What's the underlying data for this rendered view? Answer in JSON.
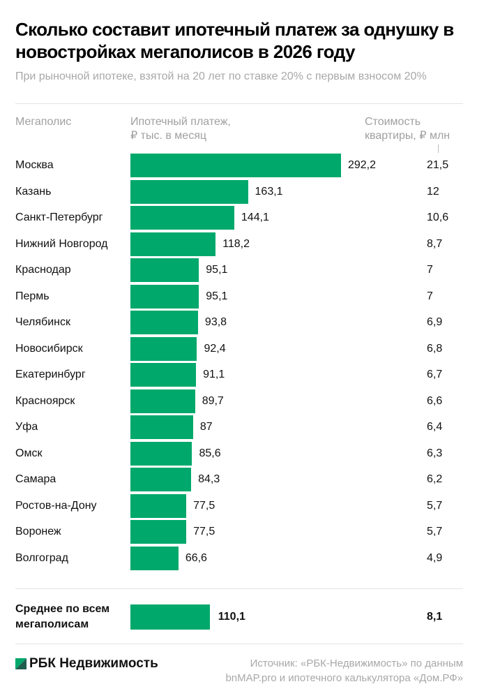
{
  "title": "Сколько составит ипотечный платеж за однушку в новостройках мегаполисов в 2026 году",
  "subtitle": "При рыночной ипотеке, взятой на 20 лет по ставке 20% с первым взносом 20%",
  "headers": {
    "city": "Мегаполис",
    "payment_line1": "Ипотечный платеж,",
    "payment_line2": "₽ тыс. в месяц",
    "price_line1": "Стоимость",
    "price_line2": "квартиры, ₽ млн"
  },
  "chart_data": {
    "type": "bar",
    "orientation": "horizontal",
    "categories": [
      "Москва",
      "Казань",
      "Санкт-Петербург",
      "Нижний Новгород",
      "Краснодар",
      "Пермь",
      "Челябинск",
      "Новосибирск",
      "Екатеринбург",
      "Красноярск",
      "Уфа",
      "Омск",
      "Самара",
      "Ростов-на-Дону",
      "Воронеж",
      "Волгоград"
    ],
    "values": [
      292.2,
      163.1,
      144.1,
      118.2,
      95.1,
      95.1,
      93.8,
      92.4,
      91.1,
      89.7,
      87,
      85.6,
      84.3,
      77.5,
      77.5,
      66.6
    ],
    "value_labels": [
      "292,2",
      "163,1",
      "144,1",
      "118,2",
      "95,1",
      "95,1",
      "93,8",
      "92,4",
      "91,1",
      "89,7",
      "87",
      "85,6",
      "84,3",
      "77,5",
      "77,5",
      "66,6"
    ],
    "price_labels": [
      "21,5",
      "12",
      "10,6",
      "8,7",
      "7",
      "7",
      "6,9",
      "6,8",
      "6,7",
      "6,6",
      "6,4",
      "6,3",
      "6,2",
      "5,7",
      "5,7",
      "4,9"
    ],
    "average": {
      "label_line1": "Среднее по всем",
      "label_line2": "мегаполисам",
      "value": 110.1,
      "value_label": "110,1",
      "price_label": "8,1"
    },
    "grid": false,
    "bar_color": "#00a86b"
  },
  "footer": {
    "logo_text": "РБК Недвижимость",
    "source_line1": "Источник: «РБК-Недвижимость» по данным",
    "source_line2": "bnMAP.pro и ипотечного калькулятора «Дом.РФ»"
  },
  "colors": {
    "accent": "#00a86b",
    "logo_dark": "#1f5e4e"
  }
}
